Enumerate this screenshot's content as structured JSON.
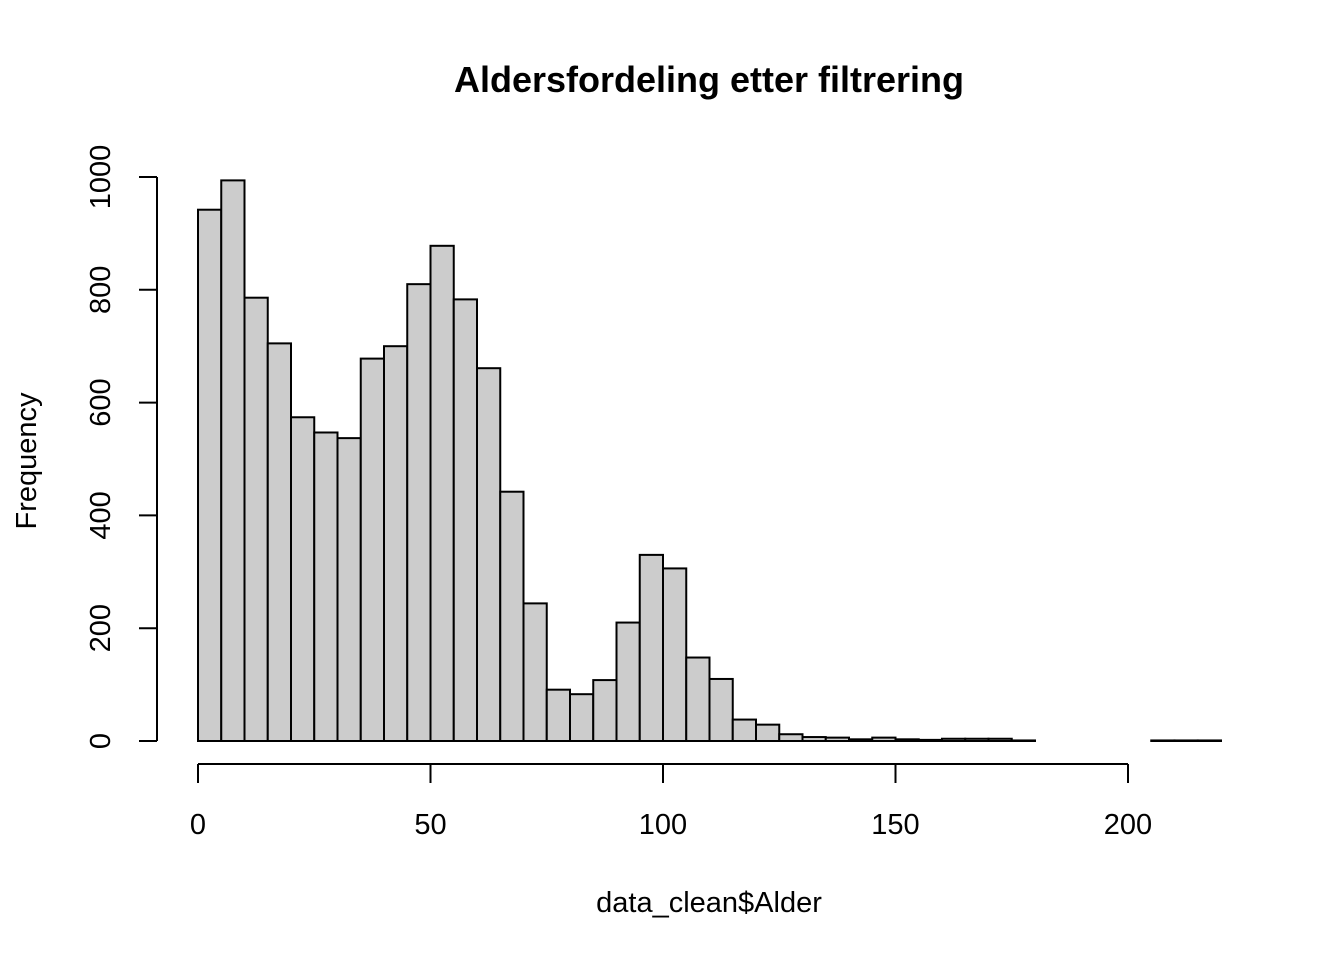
{
  "chart_data": {
    "type": "bar",
    "title": "Aldersfordeling etter filtrering",
    "xlabel": "data_clean$Alder",
    "ylabel": "Frequency",
    "bin_width": 5,
    "bins_start": [
      0,
      5,
      10,
      15,
      20,
      25,
      30,
      35,
      40,
      45,
      50,
      55,
      60,
      65,
      70,
      75,
      80,
      85,
      90,
      95,
      100,
      105,
      110,
      115,
      120,
      125,
      130,
      135,
      140,
      145,
      150,
      155,
      160,
      165,
      170,
      175,
      180,
      185,
      190,
      195,
      200,
      205,
      210,
      215
    ],
    "values": [
      942,
      994,
      786,
      705,
      574,
      547,
      537,
      678,
      700,
      810,
      878,
      783,
      661,
      442,
      244,
      91,
      83,
      108,
      210,
      330,
      306,
      148,
      110,
      38,
      29,
      12,
      7,
      6,
      3,
      6,
      3,
      2,
      4,
      4,
      4,
      1,
      0,
      0,
      0,
      0,
      0,
      1,
      1,
      1
    ],
    "xlim": [
      0,
      220
    ],
    "ylim": [
      0,
      1000
    ],
    "x_ticks": [
      "0",
      "50",
      "100",
      "150",
      "200"
    ],
    "y_ticks": [
      "0",
      "200",
      "400",
      "600",
      "800",
      "1000"
    ],
    "bar_fill": "#cccccc",
    "bar_stroke": "#000000",
    "grid": false,
    "legend": "none"
  }
}
